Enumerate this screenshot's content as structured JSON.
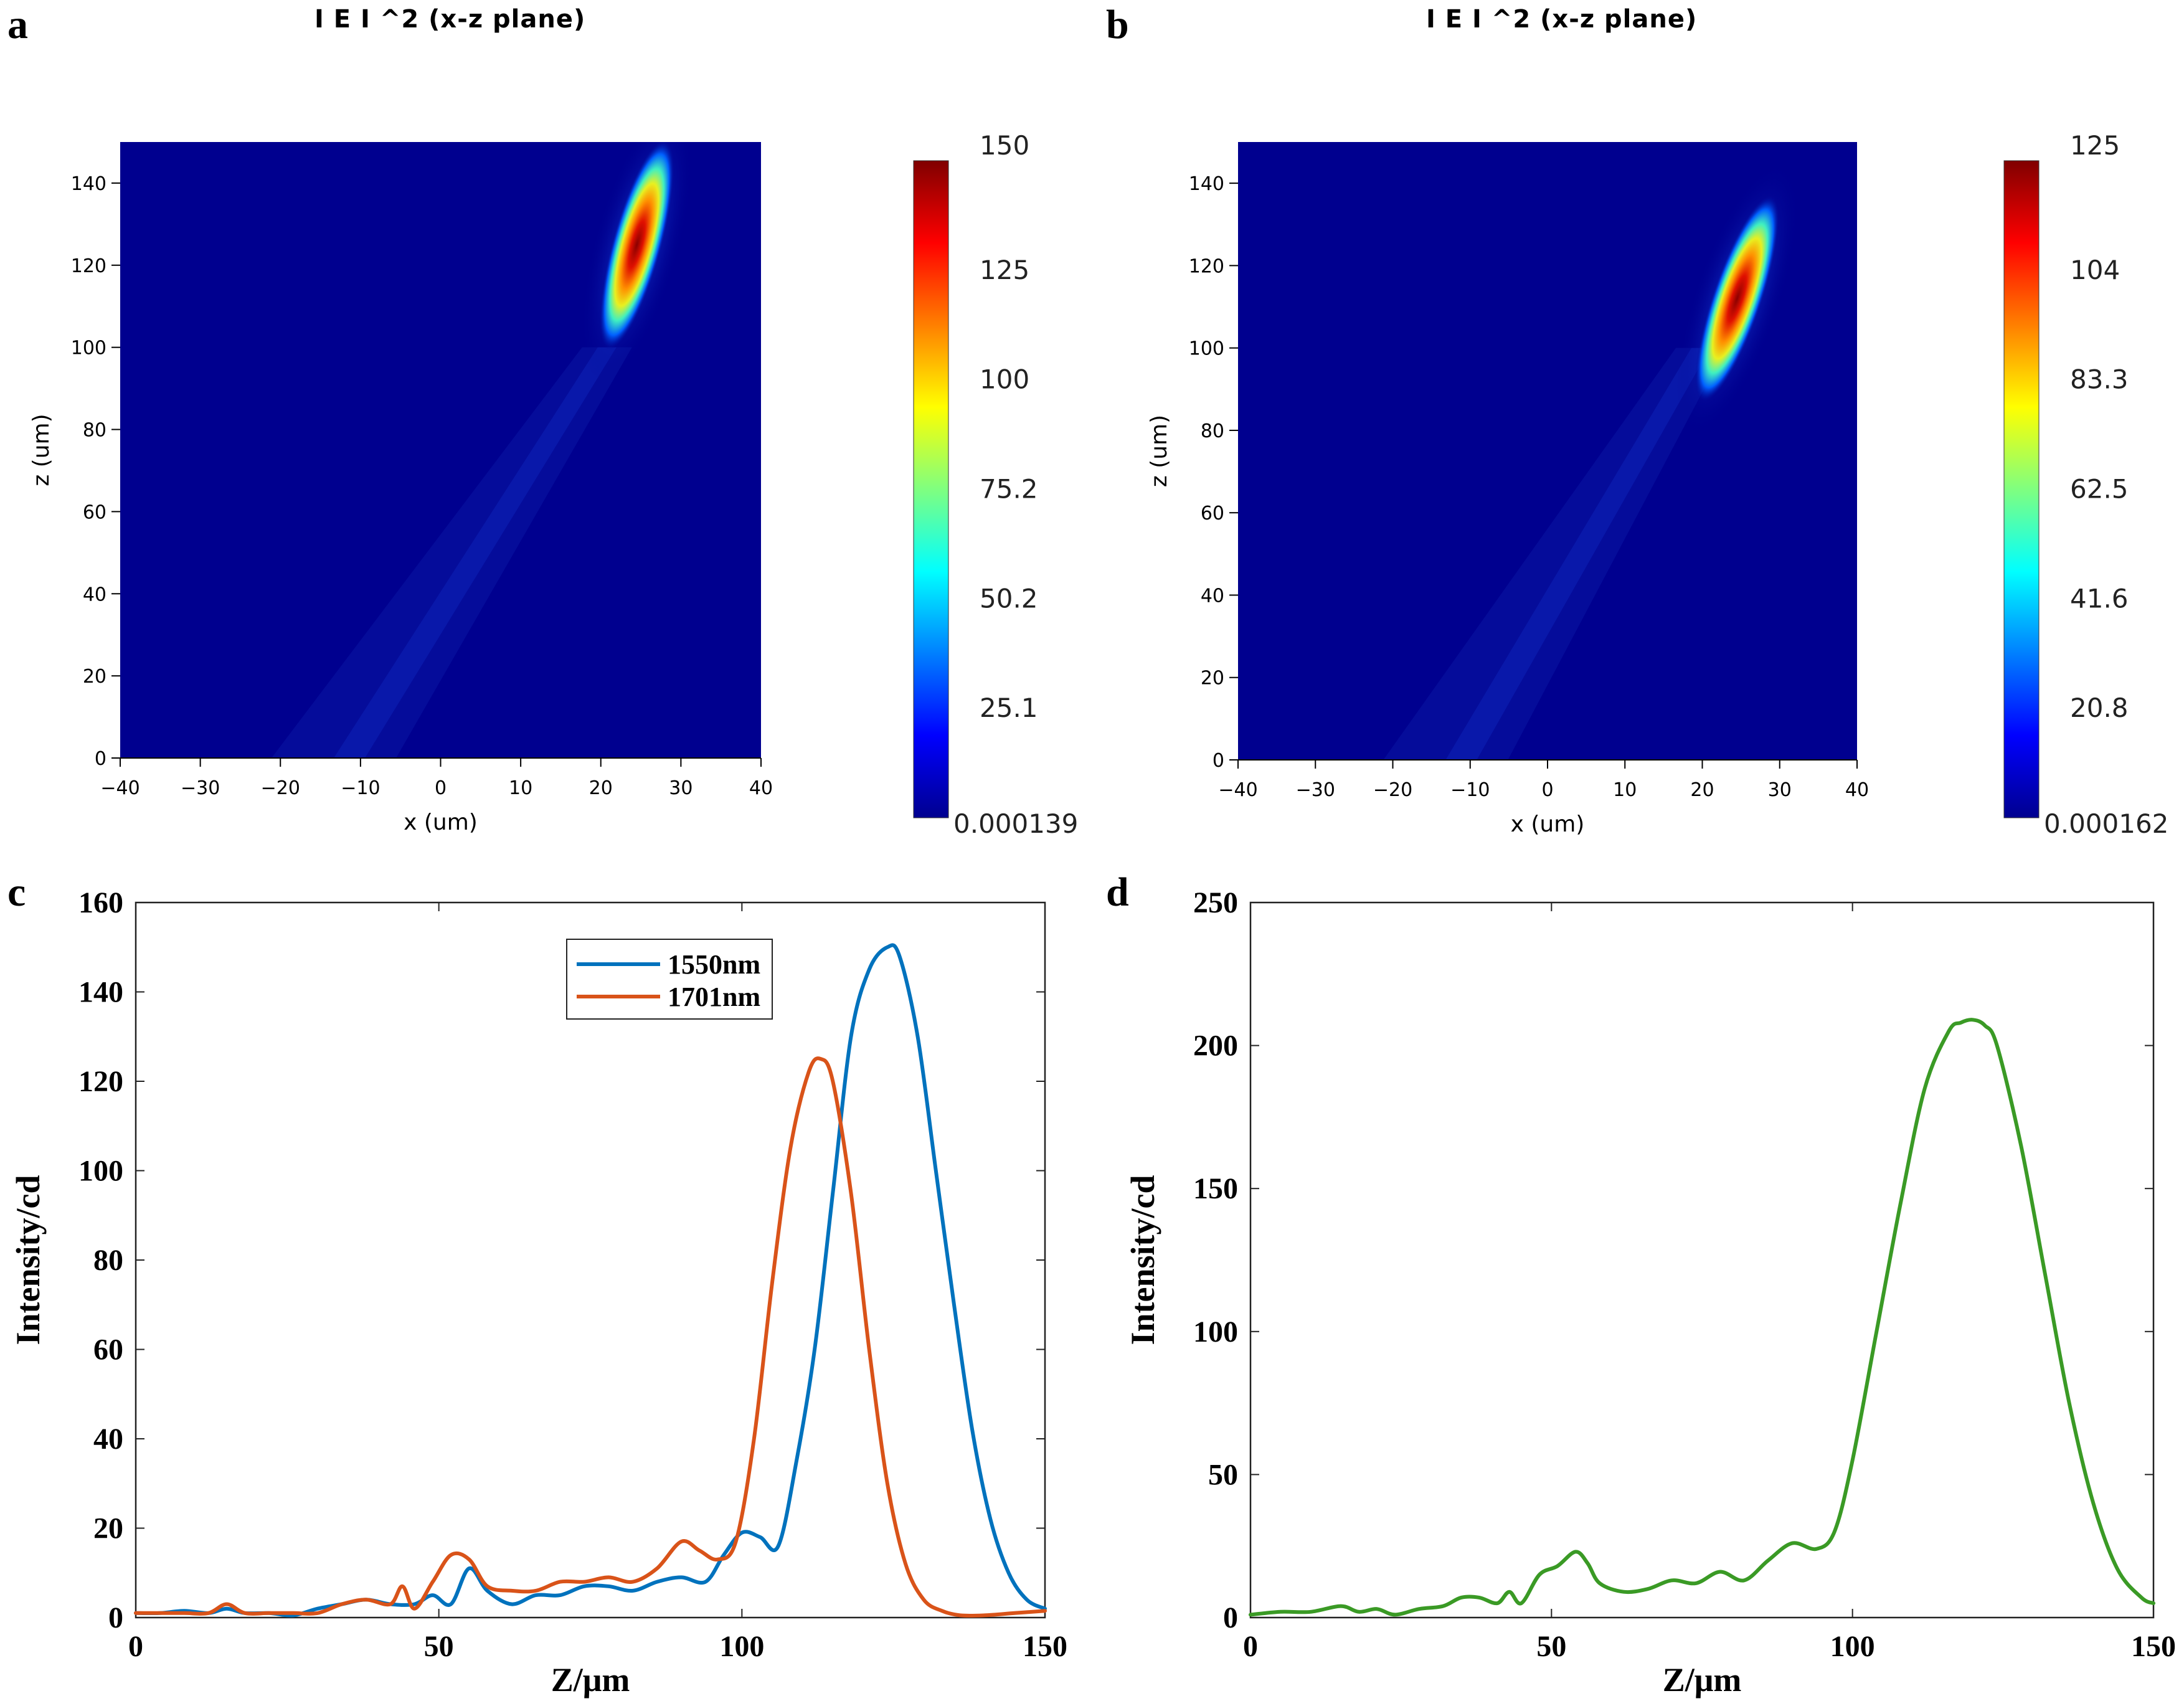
{
  "panels": {
    "a": {
      "letter": "a",
      "title": "I E I ^2 (x-z plane)"
    },
    "b": {
      "letter": "b",
      "title": "I E I ^2 (x-z plane)"
    },
    "c": {
      "letter": "c"
    },
    "d": {
      "letter": "d"
    }
  },
  "colors": {
    "blue": "#0072BD",
    "orange": "#D95319",
    "green": "#3A9A25",
    "heatmap_bg": "#00008F"
  },
  "chart_data": [
    {
      "id": "a",
      "type": "heatmap",
      "title": "I E I ^2 (x-z plane)",
      "xlabel": "x (um)",
      "ylabel": "z (um)",
      "xlim": [
        -40,
        40
      ],
      "ylim": [
        0,
        150
      ],
      "xticks": [
        -40,
        -30,
        -20,
        -10,
        0,
        10,
        20,
        30,
        40
      ],
      "yticks": [
        0,
        20,
        40,
        60,
        80,
        100,
        120,
        140
      ],
      "colorbar": {
        "min": "0.000139",
        "max": 150,
        "ticks": [
          "150",
          "125",
          "100",
          "75.2",
          "50.2",
          "25.1",
          "0.000139"
        ]
      },
      "focus": {
        "x_at_z100": 20,
        "x_at_z150": 27,
        "z_peak": 125
      }
    },
    {
      "id": "b",
      "type": "heatmap",
      "title": "I E I ^2 (x-z plane)",
      "xlabel": "x (um)",
      "ylabel": "z (um)",
      "xlim": [
        -40,
        40
      ],
      "ylim": [
        0,
        150
      ],
      "xticks": [
        -40,
        -30,
        -20,
        -10,
        0,
        10,
        20,
        30,
        40
      ],
      "yticks": [
        0,
        20,
        40,
        60,
        80,
        100,
        120,
        140
      ],
      "colorbar": {
        "min": "0.000162",
        "max": 125,
        "ticks": [
          "125",
          "104",
          "83.3",
          "62.5",
          "41.6",
          "20.8",
          "0.000162"
        ]
      },
      "focus": {
        "x_at_z100": 19,
        "x_at_z150": 28,
        "z_peak": 112
      }
    },
    {
      "id": "c",
      "type": "line",
      "xlabel": "Z/μm",
      "ylabel": "Intensity/cd",
      "xlim": [
        0,
        150
      ],
      "ylim": [
        0,
        160
      ],
      "xticks": [
        0,
        50,
        100,
        150
      ],
      "yticks": [
        0,
        20,
        40,
        60,
        80,
        100,
        120,
        140,
        160
      ],
      "legend_position": "top-center",
      "series": [
        {
          "name": "1550nm",
          "color": "#0072BD",
          "x": [
            0,
            4,
            8,
            12,
            15,
            18,
            22,
            26,
            30,
            34,
            38,
            42,
            46,
            49,
            52,
            55,
            58,
            62,
            66,
            70,
            74,
            78,
            82,
            86,
            90,
            94,
            97,
            100,
            103,
            106,
            109,
            112,
            115,
            118,
            121,
            124,
            126,
            129,
            132,
            135,
            138,
            141,
            144,
            147,
            150
          ],
          "y": [
            1,
            1,
            1.5,
            1,
            2,
            1,
            1,
            0.5,
            2,
            3,
            4,
            3,
            3,
            5,
            3,
            11,
            6,
            3,
            5,
            5,
            7,
            7,
            6,
            8,
            9,
            8,
            14,
            19,
            18,
            16,
            35,
            60,
            95,
            130,
            145,
            150,
            148,
            130,
            100,
            70,
            42,
            22,
            10,
            4,
            2
          ]
        },
        {
          "name": "1701nm",
          "color": "#D95319",
          "x": [
            0,
            4,
            8,
            12,
            15,
            18,
            22,
            26,
            30,
            34,
            38,
            42,
            44,
            46,
            49,
            52,
            55,
            58,
            62,
            66,
            70,
            74,
            78,
            82,
            86,
            90,
            93,
            96,
            99,
            102,
            105,
            108,
            111,
            113,
            115,
            118,
            121,
            124,
            127,
            130,
            133,
            136,
            140,
            145,
            150
          ],
          "y": [
            1,
            1,
            1,
            1,
            3,
            1,
            1,
            1,
            1,
            3,
            4,
            3,
            7,
            2,
            8,
            14,
            13,
            7,
            6,
            6,
            8,
            8,
            9,
            8,
            11,
            17,
            15,
            13,
            17,
            40,
            75,
            105,
            122,
            125,
            120,
            95,
            60,
            30,
            12,
            4,
            1.5,
            0.5,
            0.5,
            1,
            1.5
          ]
        }
      ]
    },
    {
      "id": "d",
      "type": "line",
      "xlabel": "Z/μm",
      "ylabel": "Intensity/cd",
      "xlim": [
        0,
        150
      ],
      "ylim": [
        0,
        250
      ],
      "xticks": [
        0,
        50,
        100,
        150
      ],
      "yticks": [
        0,
        50,
        100,
        150,
        200,
        250
      ],
      "series": [
        {
          "name": "",
          "color": "#3A9A25",
          "x": [
            0,
            5,
            10,
            15,
            18,
            21,
            24,
            28,
            32,
            35,
            38,
            41,
            43,
            45,
            48,
            51,
            54,
            56,
            58,
            62,
            66,
            70,
            74,
            78,
            82,
            86,
            90,
            94,
            97,
            100,
            104,
            108,
            112,
            116,
            118,
            120,
            122,
            124,
            128,
            132,
            136,
            140,
            144,
            148,
            150
          ],
          "y": [
            1,
            2,
            2,
            4,
            2,
            3,
            1,
            3,
            4,
            7,
            7,
            5,
            9,
            5,
            15,
            18,
            23,
            19,
            12,
            9,
            10,
            13,
            12,
            16,
            13,
            20,
            26,
            24,
            30,
            55,
            100,
            145,
            185,
            205,
            208,
            209,
            207,
            200,
            165,
            120,
            75,
            40,
            17,
            7,
            5
          ]
        }
      ]
    }
  ]
}
